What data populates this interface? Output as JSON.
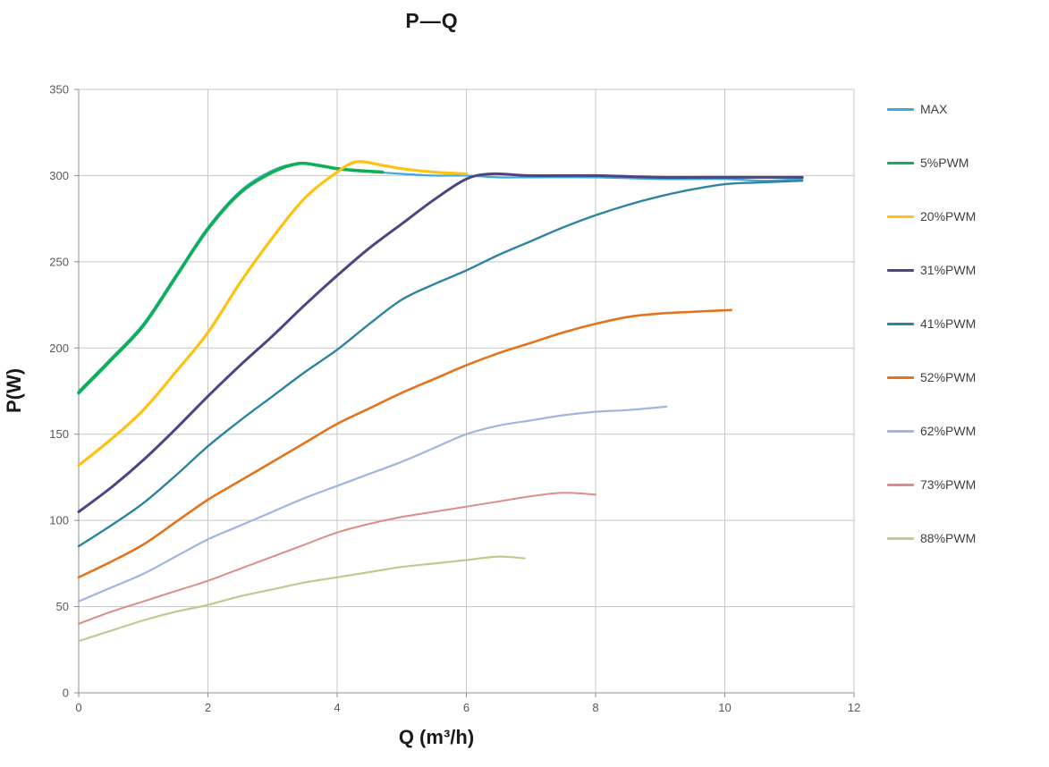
{
  "chart_data": {
    "type": "line",
    "title": "P—Q",
    "xlabel": "Q (m³/h)",
    "ylabel": "P(W)",
    "xlim": [
      0,
      12
    ],
    "ylim": [
      0,
      350
    ],
    "x_ticks": [
      0,
      2,
      4,
      6,
      8,
      10,
      12
    ],
    "y_ticks": [
      0,
      50,
      100,
      150,
      200,
      250,
      300,
      350
    ],
    "grid": "both",
    "legend_position": "right",
    "series": [
      {
        "name": "MAX",
        "color": "#3FA9DC",
        "width": 2.2,
        "points": [
          [
            0,
            175
          ],
          [
            0.5,
            194
          ],
          [
            1,
            214
          ],
          [
            1.5,
            242
          ],
          [
            2,
            270
          ],
          [
            2.5,
            291
          ],
          [
            3,
            303
          ],
          [
            3.4,
            307
          ],
          [
            3.8,
            305
          ],
          [
            4.2,
            303
          ],
          [
            4.6,
            302
          ],
          [
            5,
            301
          ],
          [
            5.5,
            300
          ],
          [
            6,
            300
          ],
          [
            6.5,
            299
          ],
          [
            7,
            299
          ],
          [
            8,
            299
          ],
          [
            9,
            298
          ],
          [
            10,
            298
          ],
          [
            10.6,
            297
          ],
          [
            11.2,
            298
          ]
        ]
      },
      {
        "name": "5%PWM",
        "color": "#0FAF54",
        "width": 3.6,
        "points": [
          [
            0,
            174
          ],
          [
            0.5,
            193
          ],
          [
            1,
            213
          ],
          [
            1.5,
            241
          ],
          [
            2,
            269
          ],
          [
            2.5,
            290
          ],
          [
            3,
            302
          ],
          [
            3.4,
            307
          ],
          [
            3.7,
            306
          ],
          [
            4,
            304
          ],
          [
            4.3,
            303
          ],
          [
            4.7,
            302
          ]
        ]
      },
      {
        "name": "20%PWM",
        "color": "#FFC212",
        "width": 3.2,
        "points": [
          [
            0,
            132
          ],
          [
            0.5,
            147
          ],
          [
            1,
            164
          ],
          [
            1.5,
            186
          ],
          [
            2,
            209
          ],
          [
            2.5,
            238
          ],
          [
            3,
            264
          ],
          [
            3.5,
            287
          ],
          [
            4,
            302
          ],
          [
            4.3,
            308
          ],
          [
            4.7,
            306
          ],
          [
            5,
            304
          ],
          [
            5.5,
            302
          ],
          [
            6,
            301
          ]
        ]
      },
      {
        "name": "31%PWM",
        "color": "#4E4383",
        "width": 3.0,
        "points": [
          [
            0,
            105
          ],
          [
            0.5,
            119
          ],
          [
            1,
            135
          ],
          [
            1.5,
            153
          ],
          [
            2,
            172
          ],
          [
            2.5,
            190
          ],
          [
            3,
            207
          ],
          [
            3.5,
            225
          ],
          [
            4,
            242
          ],
          [
            4.5,
            258
          ],
          [
            5,
            272
          ],
          [
            5.5,
            286
          ],
          [
            6,
            298
          ],
          [
            6.4,
            301
          ],
          [
            7,
            300
          ],
          [
            8,
            300
          ],
          [
            9,
            299
          ],
          [
            10,
            299
          ],
          [
            11.2,
            299
          ]
        ]
      },
      {
        "name": "41%PWM",
        "color": "#2E84A0",
        "width": 2.4,
        "points": [
          [
            0,
            85
          ],
          [
            0.5,
            97
          ],
          [
            1,
            110
          ],
          [
            1.5,
            126
          ],
          [
            2,
            143
          ],
          [
            2.5,
            158
          ],
          [
            3,
            172
          ],
          [
            3.5,
            186
          ],
          [
            4,
            199
          ],
          [
            4.5,
            214
          ],
          [
            5,
            228
          ],
          [
            5.5,
            237
          ],
          [
            6,
            245
          ],
          [
            6.5,
            254
          ],
          [
            7,
            262
          ],
          [
            7.5,
            270
          ],
          [
            8,
            277
          ],
          [
            8.5,
            283
          ],
          [
            9,
            288
          ],
          [
            9.5,
            292
          ],
          [
            10,
            295
          ],
          [
            10.5,
            296
          ],
          [
            11.2,
            297
          ]
        ]
      },
      {
        "name": "52%PWM",
        "color": "#E4731C",
        "width": 2.6,
        "points": [
          [
            0,
            67
          ],
          [
            0.5,
            76
          ],
          [
            1,
            86
          ],
          [
            1.5,
            99
          ],
          [
            2,
            112
          ],
          [
            2.5,
            123
          ],
          [
            3,
            134
          ],
          [
            3.5,
            145
          ],
          [
            4,
            156
          ],
          [
            4.5,
            165
          ],
          [
            5,
            174
          ],
          [
            5.5,
            182
          ],
          [
            6,
            190
          ],
          [
            6.5,
            197
          ],
          [
            7,
            203
          ],
          [
            7.5,
            209
          ],
          [
            8,
            214
          ],
          [
            8.5,
            218
          ],
          [
            9,
            220
          ],
          [
            9.5,
            221
          ],
          [
            10.1,
            222
          ]
        ]
      },
      {
        "name": "62%PWM",
        "color": "#9FB6DF",
        "width": 2.2,
        "points": [
          [
            0,
            53
          ],
          [
            0.5,
            61
          ],
          [
            1,
            69
          ],
          [
            1.5,
            79
          ],
          [
            2,
            89
          ],
          [
            2.5,
            97
          ],
          [
            3,
            105
          ],
          [
            3.5,
            113
          ],
          [
            4,
            120
          ],
          [
            4.5,
            127
          ],
          [
            5,
            134
          ],
          [
            5.5,
            142
          ],
          [
            6,
            150
          ],
          [
            6.5,
            155
          ],
          [
            7,
            158
          ],
          [
            7.5,
            161
          ],
          [
            8,
            163
          ],
          [
            8.5,
            164
          ],
          [
            9.1,
            166
          ]
        ]
      },
      {
        "name": "73%PWM",
        "color": "#DD8C88",
        "width": 2.0,
        "points": [
          [
            0,
            40
          ],
          [
            0.5,
            47
          ],
          [
            1,
            53
          ],
          [
            1.5,
            59
          ],
          [
            2,
            65
          ],
          [
            2.5,
            72
          ],
          [
            3,
            79
          ],
          [
            3.5,
            86
          ],
          [
            4,
            93
          ],
          [
            4.5,
            98
          ],
          [
            5,
            102
          ],
          [
            5.5,
            105
          ],
          [
            6,
            108
          ],
          [
            6.5,
            111
          ],
          [
            7,
            114
          ],
          [
            7.5,
            116
          ],
          [
            8,
            115
          ]
        ]
      },
      {
        "name": "88%PWM",
        "color": "#BCCC8F",
        "width": 2.2,
        "points": [
          [
            0,
            30
          ],
          [
            0.5,
            36
          ],
          [
            1,
            42
          ],
          [
            1.5,
            47
          ],
          [
            2,
            51
          ],
          [
            2.5,
            56
          ],
          [
            3,
            60
          ],
          [
            3.5,
            64
          ],
          [
            4,
            67
          ],
          [
            4.5,
            70
          ],
          [
            5,
            73
          ],
          [
            5.5,
            75
          ],
          [
            6,
            77
          ],
          [
            6.5,
            79
          ],
          [
            6.9,
            78
          ]
        ]
      }
    ]
  }
}
